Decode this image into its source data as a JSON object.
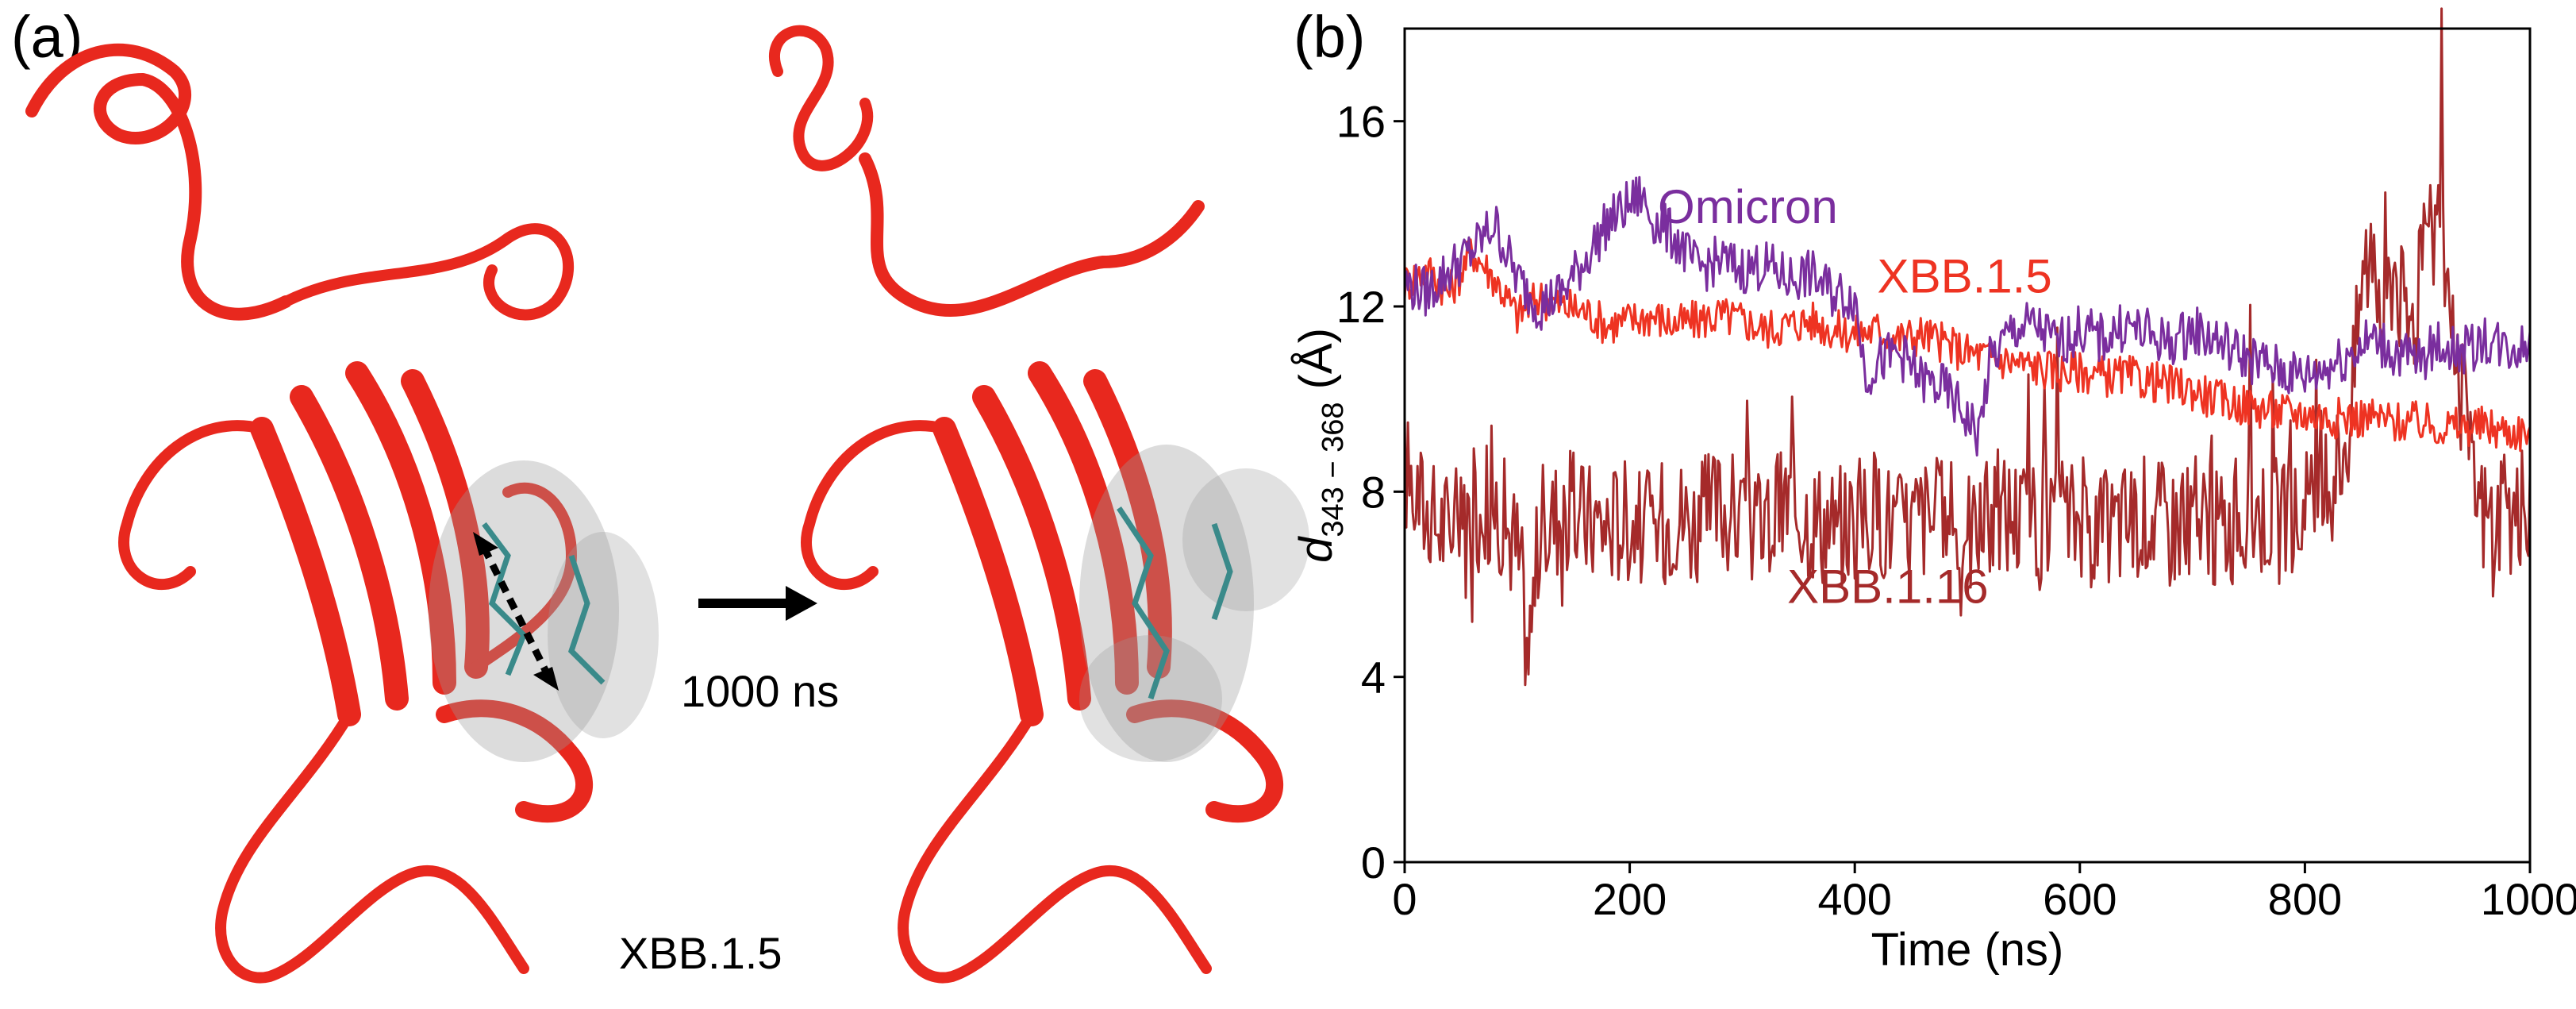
{
  "panel_a": {
    "label": "(a)",
    "arrow_caption": "1000 ns",
    "structure_caption": "XBB.1.5",
    "ribbon_color": "#e8281e",
    "surface_color": "#9a9a9a",
    "stick_color": "#3a8a8a"
  },
  "panel_b": {
    "label": "(b)"
  },
  "chart_data": {
    "type": "line",
    "title": "",
    "xlabel": "Time (ns)",
    "ylabel_main": "d",
    "ylabel_sub": "343 − 368",
    "ylabel_unit": "(Å)",
    "xlim": [
      0,
      1000
    ],
    "ylim": [
      0,
      18
    ],
    "xticks": [
      0,
      200,
      400,
      600,
      800,
      1000
    ],
    "yticks": [
      0,
      4,
      8,
      12,
      16
    ],
    "grid": false,
    "series": [
      {
        "name": "XBB.1.16",
        "color": "#a52a2a",
        "x": [
          0,
          20,
          40,
          60,
          80,
          100,
          110,
          120,
          140,
          160,
          180,
          200,
          220,
          240,
          260,
          280,
          300,
          320,
          340,
          360,
          380,
          400,
          420,
          440,
          460,
          480,
          500,
          520,
          540,
          560,
          580,
          600,
          620,
          640,
          660,
          680,
          700,
          720,
          740,
          760,
          780,
          800,
          820,
          840,
          850,
          860,
          870,
          880,
          890,
          900,
          910,
          920,
          930,
          940,
          950,
          960,
          980,
          1000
        ],
        "values": [
          8.5,
          7.5,
          7.2,
          7.6,
          7.8,
          6.8,
          4.5,
          7.2,
          7.6,
          7.4,
          7.3,
          7.5,
          7.1,
          7.6,
          7.3,
          7.7,
          7.4,
          7.2,
          7.8,
          7.5,
          7.3,
          7.4,
          7.6,
          7.2,
          7.5,
          7.3,
          7.1,
          7.4,
          7.6,
          7.2,
          7.3,
          7.5,
          7.1,
          7.4,
          7.6,
          7.3,
          7.5,
          7.2,
          7.4,
          7.6,
          7.3,
          7.5,
          8.0,
          9.5,
          12.5,
          13.5,
          12.0,
          13.0,
          11.5,
          12.0,
          13.5,
          14.0,
          12.0,
          10.0,
          8.0,
          7.5,
          7.4,
          7.6
        ]
      },
      {
        "name": "XBB.1.5",
        "color": "#ee3322",
        "x": [
          0,
          20,
          40,
          60,
          80,
          100,
          120,
          140,
          160,
          180,
          200,
          220,
          240,
          260,
          280,
          300,
          320,
          340,
          360,
          380,
          400,
          420,
          440,
          460,
          480,
          500,
          520,
          540,
          560,
          580,
          600,
          620,
          640,
          660,
          680,
          700,
          720,
          740,
          760,
          780,
          800,
          820,
          840,
          860,
          880,
          900,
          920,
          940,
          960,
          980,
          1000
        ],
        "values": [
          12.5,
          12.8,
          12.3,
          13.2,
          12.6,
          11.8,
          12.2,
          12.0,
          11.9,
          11.6,
          11.7,
          11.8,
          11.6,
          11.7,
          11.8,
          11.7,
          11.5,
          11.6,
          11.7,
          11.5,
          11.4,
          11.5,
          11.3,
          11.4,
          11.2,
          11.0,
          10.9,
          10.8,
          10.7,
          10.6,
          10.6,
          10.5,
          10.5,
          10.4,
          10.3,
          10.2,
          10.0,
          9.9,
          9.8,
          9.7,
          9.7,
          9.6,
          9.6,
          9.6,
          9.5,
          9.5,
          9.4,
          9.4,
          9.4,
          9.3,
          9.3
        ]
      },
      {
        "name": "Omicron",
        "color": "#7a2e9e",
        "x": [
          0,
          20,
          40,
          60,
          80,
          100,
          120,
          140,
          160,
          180,
          200,
          210,
          220,
          240,
          260,
          280,
          300,
          320,
          340,
          360,
          380,
          400,
          410,
          420,
          440,
          460,
          480,
          500,
          510,
          520,
          540,
          560,
          580,
          600,
          620,
          640,
          660,
          680,
          700,
          720,
          740,
          760,
          780,
          800,
          820,
          840,
          860,
          880,
          900,
          920,
          940,
          960,
          980,
          1000
        ],
        "values": [
          12.5,
          12.3,
          12.8,
          13.2,
          13.8,
          12.6,
          12.0,
          12.3,
          13.0,
          13.8,
          14.2,
          14.4,
          13.9,
          13.5,
          12.8,
          13.0,
          12.8,
          12.9,
          12.6,
          12.7,
          12.3,
          12.2,
          10.5,
          10.8,
          11.0,
          10.4,
          10.2,
          9.6,
          9.2,
          10.8,
          11.5,
          11.6,
          11.2,
          11.5,
          11.3,
          11.6,
          11.4,
          11.2,
          11.5,
          11.3,
          11.0,
          10.8,
          10.6,
          10.5,
          10.7,
          11.0,
          11.3,
          11.0,
          10.8,
          11.2,
          11.0,
          11.3,
          11.1,
          11.2
        ]
      }
    ]
  }
}
